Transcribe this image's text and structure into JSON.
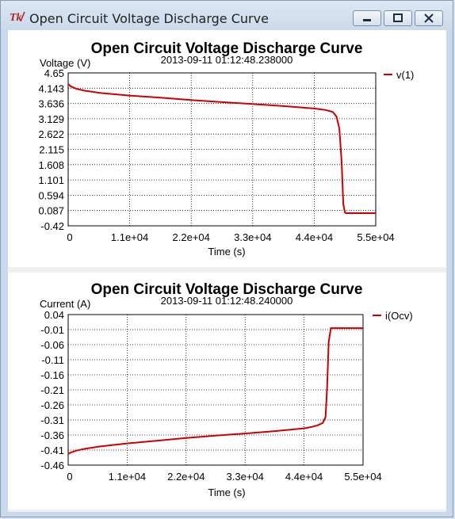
{
  "window": {
    "title": "Open Circuit Voltage Discharge Curve",
    "icon": "tk-feather-icon",
    "buttons": [
      "minimize-icon",
      "maximize-icon",
      "close-icon"
    ]
  },
  "colors": {
    "series": "#cc0000",
    "title_bar": "#c9d8ea",
    "plot_background": "#ffffff"
  },
  "charts": [
    {
      "title": "Open Circuit Voltage Discharge Curve",
      "subtitle": "2013-09-11 01:12:48.238000",
      "ylabel": "Voltage (V)",
      "xlabel": "Time (s)",
      "yticks": [
        "4.65",
        "4.143",
        "3.636",
        "3.129",
        "2.622",
        "2.115",
        "1.608",
        "1.101",
        "0.594",
        "0.087",
        "-0.42"
      ],
      "xticks": [
        "0",
        "1.1e+04",
        "2.2e+04",
        "3.3e+04",
        "4.4e+04",
        "5.5e+04"
      ],
      "legend": "v(1)"
    },
    {
      "title": "Open Circuit Voltage Discharge Curve",
      "subtitle": "2013-09-11 01:12:48.240000",
      "ylabel": "Current (A)",
      "xlabel": "Time (s)",
      "yticks": [
        "0.04",
        "-0.01",
        "-0.06",
        "-0.11",
        "-0.16",
        "-0.21",
        "-0.26",
        "-0.31",
        "-0.36",
        "-0.41",
        "-0.46"
      ],
      "xticks": [
        "0",
        "1.1e+04",
        "2.2e+04",
        "3.3e+04",
        "4.4e+04",
        "5.5e+04"
      ],
      "legend": "i(Ocv)"
    }
  ],
  "chart_data": [
    {
      "type": "line",
      "title": "Open Circuit Voltage Discharge Curve",
      "subtitle": "2013-09-11 01:12:48.238000",
      "xlabel": "Time (s)",
      "ylabel": "Voltage (V)",
      "xlim": [
        0,
        55000
      ],
      "ylim": [
        -0.42,
        4.65
      ],
      "grid": true,
      "legend_position": "top-right",
      "series": [
        {
          "name": "v(1)",
          "x": [
            0,
            500,
            1500,
            3000,
            6000,
            11000,
            16500,
            22000,
            27500,
            33000,
            38500,
            44000,
            46000,
            47300,
            48000,
            48500,
            48900,
            49200,
            49500,
            49700,
            50000,
            55000
          ],
          "y": [
            4.28,
            4.2,
            4.12,
            4.06,
            3.98,
            3.9,
            3.83,
            3.75,
            3.68,
            3.62,
            3.55,
            3.47,
            3.42,
            3.36,
            3.2,
            2.8,
            1.7,
            0.3,
            0.02,
            0.0,
            0.0,
            0.0
          ]
        }
      ]
    },
    {
      "type": "line",
      "title": "Open Circuit Voltage Discharge Curve",
      "subtitle": "2013-09-11 01:12:48.240000",
      "xlabel": "Time (s)",
      "ylabel": "Current (A)",
      "xlim": [
        0,
        55000
      ],
      "ylim": [
        -0.46,
        0.04
      ],
      "grid": true,
      "legend_position": "top-right",
      "series": [
        {
          "name": "i(Ocv)",
          "x": [
            0,
            500,
            1500,
            3000,
            6000,
            11000,
            16500,
            22000,
            27500,
            33000,
            38500,
            44000,
            45500,
            46500,
            47500,
            48000,
            48300,
            48600,
            49000,
            49400,
            55000
          ],
          "y": [
            -0.423,
            -0.418,
            -0.412,
            -0.406,
            -0.398,
            -0.388,
            -0.379,
            -0.37,
            -0.362,
            -0.355,
            -0.347,
            -0.338,
            -0.333,
            -0.328,
            -0.32,
            -0.3,
            -0.2,
            -0.05,
            -0.005,
            -0.005,
            -0.005
          ]
        }
      ]
    }
  ]
}
